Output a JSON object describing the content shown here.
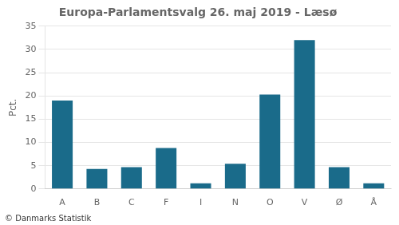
{
  "chart_data": {
    "type": "bar",
    "title": "Europa-Parlamentsvalg 26. maj 2019 - Læsø",
    "categories": [
      "A",
      "B",
      "C",
      "F",
      "I",
      "N",
      "O",
      "V",
      "Ø",
      "Å"
    ],
    "values": [
      19.0,
      4.3,
      4.7,
      8.8,
      1.2,
      5.4,
      20.3,
      32.0,
      4.7,
      1.2
    ],
    "color": "#1a6b8a",
    "ylabel": "Pct.",
    "footer": "© Danmarks Statistik",
    "ylim": [
      0,
      35
    ],
    "yticks": [
      0,
      5,
      10,
      15,
      20,
      25,
      30,
      35
    ],
    "grid": true
  }
}
